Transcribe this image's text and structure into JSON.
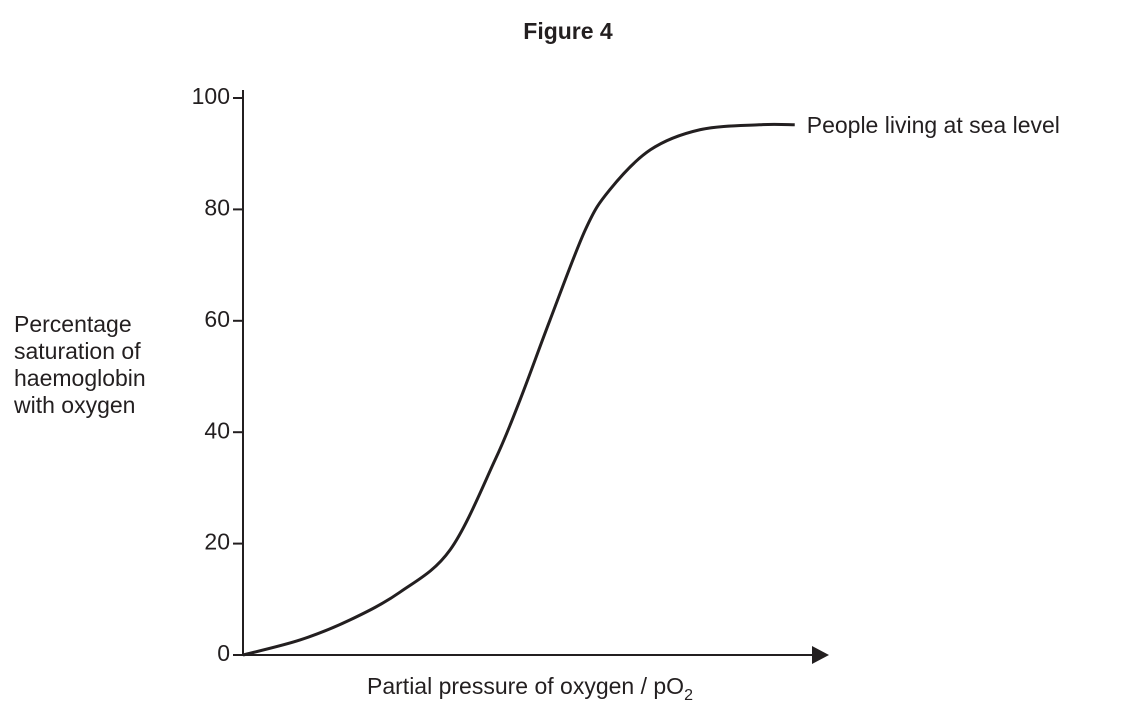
{
  "chart_data": {
    "type": "line",
    "title": "Figure 4",
    "ylabel": [
      "Percentage",
      "saturation of",
      "haemoglobin",
      "with oxygen"
    ],
    "xlabel": "Partial pressure of oxygen / pO",
    "xlabel_subscript": "2",
    "x": [
      0,
      9.8,
      18.4,
      27,
      35.6,
      43.3,
      47.6,
      52.7,
      58.8,
      63,
      70,
      78.5,
      88.7,
      94.8
    ],
    "series": [
      {
        "name": "People living at sea level",
        "color": "#231f20",
        "values": [
          0,
          2.7,
          6.3,
          11.3,
          18.9,
          35,
          45.8,
          60,
          76.3,
          83.5,
          90.7,
          94.3,
          95.2,
          95.2
        ]
      }
    ],
    "xlim": [
      0,
      100
    ],
    "ylim": [
      0,
      100
    ],
    "yticks": [
      0,
      20,
      40,
      60,
      80,
      100
    ]
  }
}
